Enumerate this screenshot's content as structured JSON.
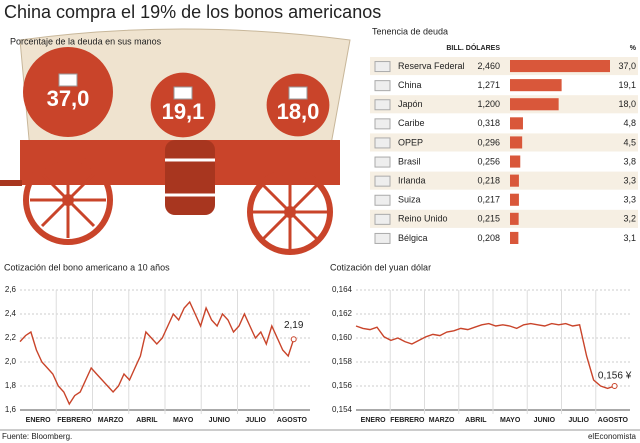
{
  "title": "China compra el 19% de los bonos americanos",
  "source": "Fuente: Bloomberg.",
  "brand": "elEconomista",
  "chart_data": [
    {
      "type": "bubble",
      "subtitle": "Porcentaje de la deuda en sus manos",
      "values": [
        37.0,
        19.1,
        18.0
      ],
      "value_labels": [
        "37,0",
        "19,1",
        "18,0"
      ],
      "color": "#c9442a"
    },
    {
      "type": "tablebar",
      "title": "Tenencia de deuda",
      "columns": [
        "BILL. DÓLARES",
        "%"
      ],
      "categories": [
        "Reserva Federal",
        "China",
        "Japón",
        "Caribe",
        "OPEP",
        "Brasil",
        "Irlanda",
        "Suiza",
        "Reino Unido",
        "Bélgica"
      ],
      "amounts": [
        2.46,
        1.271,
        1.2,
        0.318,
        0.296,
        0.256,
        0.218,
        0.217,
        0.215,
        0.208
      ],
      "amount_labels": [
        "2,460",
        "1,271",
        "1,200",
        "0,318",
        "0,296",
        "0,256",
        "0,218",
        "0,217",
        "0,215",
        "0,208"
      ],
      "values": [
        37.0,
        19.1,
        18.0,
        4.8,
        4.5,
        3.8,
        3.3,
        3.3,
        3.2,
        3.1
      ],
      "value_labels": [
        "37,0",
        "19,1",
        "18,0",
        "4,8",
        "4,5",
        "3,8",
        "3,3",
        "3,3",
        "3,2",
        "3,1"
      ],
      "color": "#d9573a"
    },
    {
      "type": "line",
      "title": "Cotización del bono americano a 10 años",
      "months": [
        "ENERO",
        "FEBRERO",
        "MARZO",
        "ABRIL",
        "MAYO",
        "JUNIO",
        "JULIO",
        "AGOSTO"
      ],
      "values": [
        2.17,
        2.22,
        2.25,
        2.1,
        2.0,
        1.95,
        1.9,
        1.8,
        1.75,
        1.65,
        1.72,
        1.75,
        1.85,
        1.95,
        1.9,
        1.85,
        1.8,
        1.75,
        1.8,
        1.9,
        1.85,
        1.95,
        2.05,
        2.25,
        2.2,
        2.15,
        2.2,
        2.3,
        2.4,
        2.35,
        2.45,
        2.5,
        2.4,
        2.3,
        2.45,
        2.35,
        2.3,
        2.4,
        2.35,
        2.25,
        2.3,
        2.4,
        2.3,
        2.2,
        2.25,
        2.15,
        2.3,
        2.2,
        2.1,
        2.05,
        2.19
      ],
      "end_label": "2,19",
      "color": "#c9442a",
      "grid": true,
      "ylim": [
        1.6,
        2.6
      ],
      "yticks": [
        {
          "value": 1.6,
          "label": "1,6"
        },
        {
          "value": 1.8,
          "label": "1,8"
        },
        {
          "value": 2.0,
          "label": "2,0"
        },
        {
          "value": 2.2,
          "label": "2,2"
        },
        {
          "value": 2.4,
          "label": "2,4"
        },
        {
          "value": 2.6,
          "label": "2,6"
        }
      ]
    },
    {
      "type": "line",
      "title": "Cotización del yuan dólar",
      "months": [
        "ENERO",
        "FEBRERO",
        "MARZO",
        "ABRIL",
        "MAYO",
        "JUNIO",
        "JULIO",
        "AGOSTO"
      ],
      "values": [
        0.161,
        0.1608,
        0.1607,
        0.1609,
        0.1601,
        0.1598,
        0.16,
        0.1597,
        0.1595,
        0.1598,
        0.1601,
        0.1603,
        0.1602,
        0.1605,
        0.1606,
        0.1608,
        0.1607,
        0.1609,
        0.1611,
        0.1612,
        0.161,
        0.1611,
        0.161,
        0.1608,
        0.1611,
        0.1612,
        0.1611,
        0.161,
        0.1612,
        0.1611,
        0.1612,
        0.161,
        0.1611,
        0.1585,
        0.1565,
        0.156,
        0.1558,
        0.156
      ],
      "end_label": "0,156 ¥",
      "color": "#c9442a",
      "grid": true,
      "ylim": [
        0.154,
        0.164
      ],
      "yticks": [
        {
          "value": 0.154,
          "label": "0,154"
        },
        {
          "value": 0.156,
          "label": "0,156"
        },
        {
          "value": 0.158,
          "label": "0,158"
        },
        {
          "value": 0.16,
          "label": "0,160"
        },
        {
          "value": 0.162,
          "label": "0,162"
        },
        {
          "value": 0.164,
          "label": "0,164"
        }
      ]
    }
  ]
}
